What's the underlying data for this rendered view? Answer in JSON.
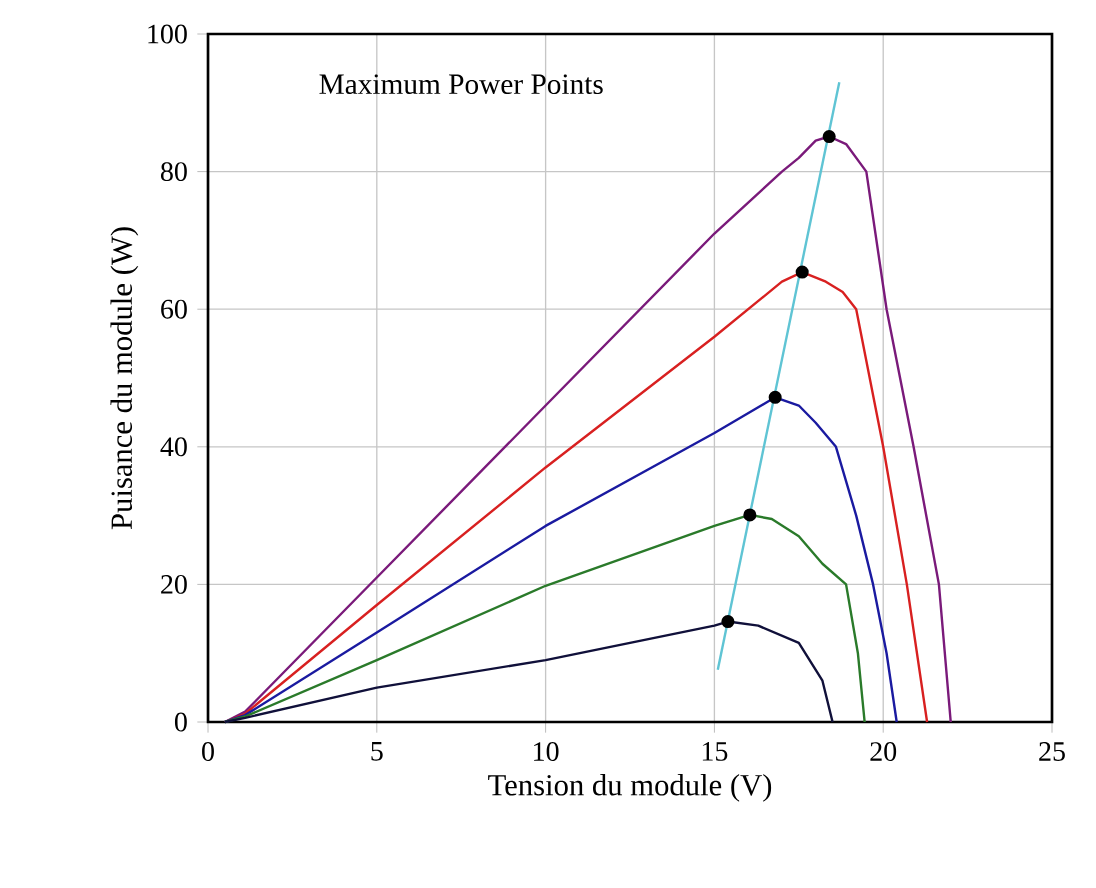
{
  "chart_data": {
    "type": "line",
    "xlabel": "Tension du module (V)",
    "ylabel": "Puisance du module (W)",
    "annotations": [
      "Maximum Power Points"
    ],
    "xlim": [
      0,
      25
    ],
    "ylim": [
      0,
      100
    ],
    "xticks": [
      0,
      5,
      10,
      15,
      20,
      25
    ],
    "yticks": [
      0,
      20,
      40,
      60,
      80,
      100
    ],
    "grid": true,
    "series": [
      {
        "color": "#7a1a7a",
        "x": [
          0.5,
          1.1,
          5,
          10,
          15,
          17,
          17.5,
          18,
          18.4,
          18.9,
          19.5,
          20.1,
          20.9,
          21.65,
          22
        ],
        "values": [
          0,
          1.5,
          21,
          46,
          71,
          80,
          82,
          84.5,
          85.1,
          84,
          80,
          60,
          40,
          20,
          0
        ]
      },
      {
        "color": "#d82020",
        "x": [
          0.5,
          1.1,
          5,
          10,
          15,
          17,
          17.6,
          18.3,
          18.8,
          19.2,
          20,
          20.7,
          21.3
        ],
        "values": [
          0,
          1.2,
          17,
          37,
          56,
          64,
          65.4,
          64,
          62.5,
          60,
          40,
          20,
          0
        ]
      },
      {
        "color": "#1a1aa0",
        "x": [
          0.5,
          1.1,
          5,
          10,
          15,
          16.8,
          17.5,
          18,
          18.6,
          19.2,
          19.7,
          20.1,
          20.4
        ],
        "values": [
          0,
          1,
          13,
          28.5,
          42,
          47.2,
          46,
          43.5,
          40,
          30,
          20,
          10,
          0
        ]
      },
      {
        "color": "#2a7a2a",
        "x": [
          0.5,
          1.1,
          5,
          10,
          15,
          16.05,
          16.7,
          17.5,
          18.2,
          18.9,
          19.25,
          19.45
        ],
        "values": [
          0,
          0.8,
          9,
          19.8,
          28.5,
          30.1,
          29.5,
          27,
          23,
          20,
          10,
          0
        ]
      },
      {
        "color": "#10103a",
        "x": [
          0.5,
          1.1,
          5,
          10,
          15,
          15.4,
          16.3,
          17.5,
          18.2,
          18.5
        ],
        "values": [
          0,
          0.6,
          5,
          9,
          14,
          14.6,
          14,
          11.5,
          6,
          0
        ]
      },
      {
        "type": "line",
        "color": "#5fc4d4",
        "x": [
          15.1,
          18.7
        ],
        "values": [
          7.6,
          93
        ]
      },
      {
        "type": "scatter",
        "color": "#000000",
        "x": [
          15.4,
          16.05,
          16.8,
          17.6,
          18.4
        ],
        "values": [
          14.6,
          30.1,
          47.2,
          65.4,
          85.1
        ]
      }
    ]
  }
}
